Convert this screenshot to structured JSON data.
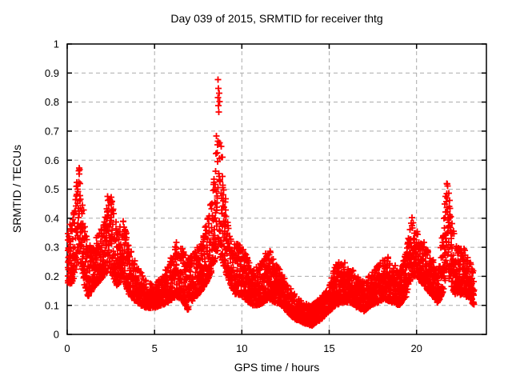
{
  "title": "Day 039 of 2015, SRMTID for receiver thtg",
  "colors": {
    "marker": "#ff0000",
    "grid": "#aaaaaa",
    "axis": "#000000",
    "background": "#ffffff"
  },
  "chart_data": {
    "type": "scatter",
    "title": "Day 039 of 2015, SRMTID for receiver thtg",
    "xlabel": "GPS time / hours",
    "ylabel": "SRMTID / TECUs",
    "xlim": [
      0,
      24
    ],
    "ylim": [
      0,
      1
    ],
    "xtick_labels": [
      "0",
      "5",
      "10",
      "15",
      "20"
    ],
    "ytick_labels": [
      "0",
      "0.1",
      "0.2",
      "0.3",
      "0.4",
      "0.5",
      "0.6",
      "0.7",
      "0.8",
      "0.9",
      "1"
    ],
    "grid": true,
    "legend_position": "none",
    "marker": "plus",
    "marker_color": "#ff0000",
    "series": [
      {
        "name": "SRMTID",
        "x_range_hours": [
          0,
          23.3
        ],
        "envelope_x_low_high": [
          [
            0.0,
            0.16,
            0.4
          ],
          [
            0.3,
            0.18,
            0.38
          ],
          [
            0.5,
            0.22,
            0.5
          ],
          [
            0.65,
            0.26,
            0.64
          ],
          [
            0.8,
            0.24,
            0.55
          ],
          [
            1.0,
            0.16,
            0.38
          ],
          [
            1.2,
            0.13,
            0.3
          ],
          [
            1.5,
            0.16,
            0.33
          ],
          [
            1.8,
            0.18,
            0.35
          ],
          [
            2.1,
            0.2,
            0.38
          ],
          [
            2.4,
            0.22,
            0.51
          ],
          [
            2.6,
            0.2,
            0.45
          ],
          [
            2.9,
            0.16,
            0.36
          ],
          [
            3.2,
            0.2,
            0.42
          ],
          [
            3.5,
            0.14,
            0.32
          ],
          [
            3.8,
            0.12,
            0.26
          ],
          [
            4.2,
            0.1,
            0.22
          ],
          [
            4.6,
            0.09,
            0.18
          ],
          [
            5.0,
            0.09,
            0.17
          ],
          [
            5.4,
            0.1,
            0.2
          ],
          [
            5.8,
            0.11,
            0.24
          ],
          [
            6.2,
            0.13,
            0.32
          ],
          [
            6.6,
            0.12,
            0.3
          ],
          [
            6.9,
            0.08,
            0.26
          ],
          [
            7.2,
            0.12,
            0.28
          ],
          [
            7.6,
            0.14,
            0.32
          ],
          [
            8.0,
            0.18,
            0.4
          ],
          [
            8.3,
            0.22,
            0.48
          ],
          [
            8.5,
            0.26,
            0.6
          ],
          [
            8.65,
            0.3,
            0.95
          ],
          [
            8.8,
            0.26,
            0.72
          ],
          [
            9.0,
            0.22,
            0.5
          ],
          [
            9.3,
            0.18,
            0.36
          ],
          [
            9.6,
            0.14,
            0.33
          ],
          [
            10.2,
            0.12,
            0.3
          ],
          [
            10.6,
            0.1,
            0.22
          ],
          [
            11.0,
            0.1,
            0.24
          ],
          [
            11.5,
            0.12,
            0.3
          ],
          [
            11.9,
            0.11,
            0.26
          ],
          [
            12.3,
            0.1,
            0.21
          ],
          [
            12.7,
            0.07,
            0.17
          ],
          [
            13.1,
            0.05,
            0.13
          ],
          [
            13.5,
            0.04,
            0.11
          ],
          [
            14.0,
            0.03,
            0.1
          ],
          [
            14.5,
            0.05,
            0.13
          ],
          [
            15.0,
            0.08,
            0.17
          ],
          [
            15.4,
            0.1,
            0.25
          ],
          [
            15.8,
            0.11,
            0.25
          ],
          [
            16.2,
            0.11,
            0.24
          ],
          [
            16.6,
            0.09,
            0.2
          ],
          [
            17.0,
            0.08,
            0.18
          ],
          [
            17.4,
            0.1,
            0.21
          ],
          [
            17.8,
            0.11,
            0.24
          ],
          [
            18.2,
            0.12,
            0.28
          ],
          [
            18.6,
            0.11,
            0.25
          ],
          [
            19.0,
            0.1,
            0.22
          ],
          [
            19.4,
            0.13,
            0.28
          ],
          [
            19.7,
            0.2,
            0.41
          ],
          [
            20.0,
            0.2,
            0.36
          ],
          [
            20.4,
            0.17,
            0.32
          ],
          [
            20.8,
            0.14,
            0.28
          ],
          [
            21.2,
            0.11,
            0.22
          ],
          [
            21.5,
            0.14,
            0.35
          ],
          [
            21.75,
            0.22,
            0.56
          ],
          [
            22.0,
            0.16,
            0.4
          ],
          [
            22.3,
            0.13,
            0.3
          ],
          [
            22.7,
            0.14,
            0.3
          ],
          [
            23.0,
            0.12,
            0.26
          ],
          [
            23.25,
            0.1,
            0.22
          ]
        ]
      }
    ],
    "notable_peaks": [
      {
        "x": 0.65,
        "y": 0.64
      },
      {
        "x": 2.45,
        "y": 0.51
      },
      {
        "x": 8.7,
        "y": 0.94
      },
      {
        "x": 19.8,
        "y": 0.41
      },
      {
        "x": 21.8,
        "y": 0.56
      }
    ],
    "minimum_band": {
      "x_range": [
        13.5,
        14.3
      ],
      "y_low": 0.03
    }
  }
}
